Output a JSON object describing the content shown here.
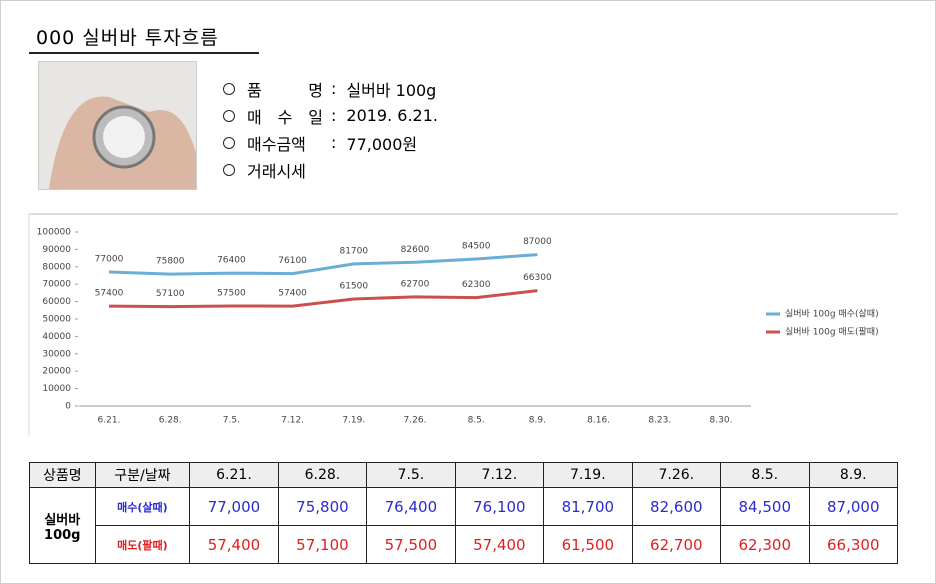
{
  "title": "000 실버바 투자흐름",
  "separator": ":",
  "info": [
    {
      "label": "품 명",
      "value": "실버바 100g"
    },
    {
      "label": "매 수 일",
      "value": "2019. 6.21."
    },
    {
      "label": "매수금액",
      "value": "77,000원"
    },
    {
      "label": "거래시세"
    }
  ],
  "chart_data": {
    "type": "line",
    "categories": [
      "6.21.",
      "6.28.",
      "7.5.",
      "7.12.",
      "7.19.",
      "7.26.",
      "8.5.",
      "8.9.",
      "8.16.",
      "8.23.",
      "8.30."
    ],
    "series": [
      {
        "name": "실버바 100g 매수(살때)",
        "color": "#6aaed6",
        "values": [
          77000,
          75800,
          76400,
          76100,
          81700,
          82600,
          84500,
          87000,
          null,
          null,
          null
        ]
      },
      {
        "name": "실버바 100g 매도(팔때)",
        "color": "#c9504d",
        "values": [
          57400,
          57100,
          57500,
          57400,
          61500,
          62700,
          62300,
          66300,
          null,
          null,
          null
        ]
      }
    ],
    "ylim": [
      0,
      100000
    ],
    "yticks": [
      0,
      10000,
      20000,
      30000,
      40000,
      50000,
      60000,
      70000,
      80000,
      90000,
      100000
    ],
    "legend": "right",
    "data_labels": true
  },
  "table": {
    "header": [
      "상품명",
      "구분/날짜",
      "6.21.",
      "6.28.",
      "7.5.",
      "7.12.",
      "7.19.",
      "7.26.",
      "8.5.",
      "8.9."
    ],
    "product": "실버바\n100g",
    "rows": [
      {
        "label": "매수(살때)",
        "color": "#2b2bd0",
        "cells": [
          "77,000",
          "75,800",
          "76,400",
          "76,100",
          "81,700",
          "82,600",
          "84,500",
          "87,000"
        ]
      },
      {
        "label": "매도(팔때)",
        "color": "#e02020",
        "cells": [
          "57,400",
          "57,100",
          "57,500",
          "57,400",
          "61,500",
          "62,700",
          "62,300",
          "66,300"
        ]
      }
    ]
  }
}
